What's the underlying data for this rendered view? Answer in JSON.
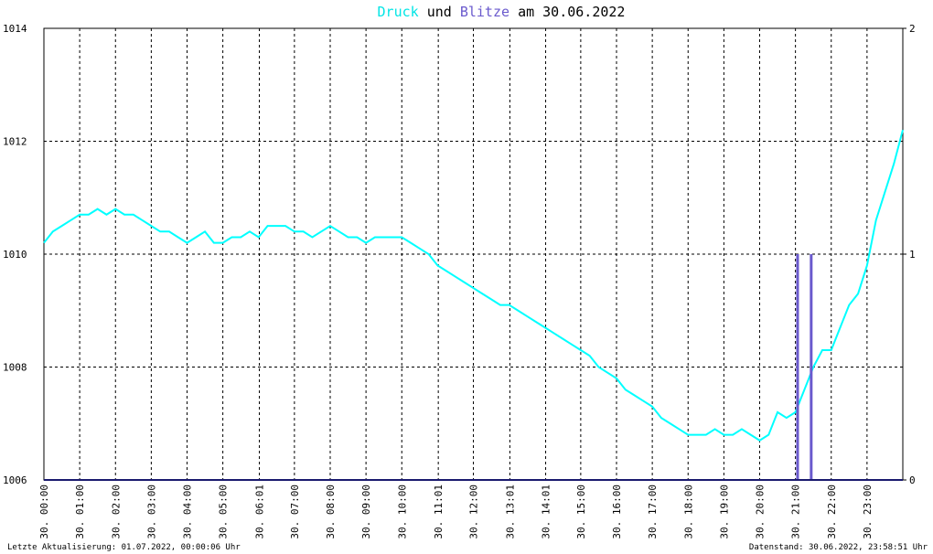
{
  "chart_data": {
    "type": "line",
    "title_parts": [
      "und",
      "am 30.06.2022"
    ],
    "footer_left": "Letzte Aktualisierung: 01.07.2022, 00:00:06 Uhr",
    "footer_right": "Datenstand: 30.06.2022, 23:58:51 Uhr",
    "xlim": [
      0,
      24
    ],
    "xticks": [
      {
        "value": 0,
        "label": "30. 00:00"
      },
      {
        "value": 1,
        "label": "30. 01:00"
      },
      {
        "value": 2,
        "label": "30. 02:00"
      },
      {
        "value": 3,
        "label": "30. 03:00"
      },
      {
        "value": 4,
        "label": "30. 04:00"
      },
      {
        "value": 5,
        "label": "30. 05:00"
      },
      {
        "value": 6.02,
        "label": "30. 06:01"
      },
      {
        "value": 7,
        "label": "30. 07:00"
      },
      {
        "value": 8,
        "label": "30. 08:00"
      },
      {
        "value": 9,
        "label": "30. 09:00"
      },
      {
        "value": 10,
        "label": "30. 10:00"
      },
      {
        "value": 11.02,
        "label": "30. 11:01"
      },
      {
        "value": 12,
        "label": "30. 12:00"
      },
      {
        "value": 13.02,
        "label": "30. 13:01"
      },
      {
        "value": 14.02,
        "label": "30. 14:01"
      },
      {
        "value": 15,
        "label": "30. 15:00"
      },
      {
        "value": 16,
        "label": "30. 16:00"
      },
      {
        "value": 17,
        "label": "30. 17:00"
      },
      {
        "value": 18,
        "label": "30. 18:00"
      },
      {
        "value": 19,
        "label": "30. 19:00"
      },
      {
        "value": 20,
        "label": "30. 20:00"
      },
      {
        "value": 21,
        "label": "30. 21:00"
      },
      {
        "value": 22,
        "label": "30. 22:00"
      },
      {
        "value": 23,
        "label": "30. 23:00"
      }
    ],
    "ylim": [
      1006,
      1014
    ],
    "yticks": [
      1006,
      1008,
      1010,
      1012,
      1014
    ],
    "y2lim": [
      0,
      2
    ],
    "y2ticks": [
      0,
      1,
      2
    ],
    "grid": true,
    "series": [
      {
        "name": "Druck",
        "color": "#00ffff",
        "x": [
          0,
          0.25,
          0.5,
          0.75,
          1,
          1.25,
          1.5,
          1.75,
          2,
          2.25,
          2.5,
          2.75,
          3,
          3.25,
          3.5,
          3.75,
          4,
          4.25,
          4.5,
          4.75,
          5,
          5.25,
          5.5,
          5.75,
          6,
          6.25,
          6.5,
          6.75,
          7,
          7.25,
          7.5,
          7.75,
          8,
          8.25,
          8.5,
          8.75,
          9,
          9.25,
          9.5,
          9.75,
          10,
          10.25,
          10.5,
          10.75,
          11,
          11.25,
          11.5,
          11.75,
          12,
          12.25,
          12.5,
          12.75,
          13,
          13.25,
          13.5,
          13.75,
          14,
          14.25,
          14.5,
          14.75,
          15,
          15.25,
          15.5,
          15.75,
          16,
          16.25,
          16.5,
          16.75,
          17,
          17.25,
          17.5,
          17.75,
          18,
          18.25,
          18.5,
          18.75,
          19,
          19.25,
          19.5,
          19.75,
          20,
          20.25,
          20.5,
          20.75,
          21,
          21.25,
          21.5,
          21.75,
          22,
          22.25,
          22.5,
          22.75,
          23,
          23.25,
          23.5,
          23.75,
          24
        ],
        "values": [
          1010.2,
          1010.4,
          1010.5,
          1010.6,
          1010.7,
          1010.7,
          1010.8,
          1010.7,
          1010.8,
          1010.7,
          1010.7,
          1010.6,
          1010.5,
          1010.4,
          1010.4,
          1010.3,
          1010.2,
          1010.3,
          1010.4,
          1010.2,
          1010.2,
          1010.3,
          1010.3,
          1010.4,
          1010.3,
          1010.5,
          1010.5,
          1010.5,
          1010.4,
          1010.4,
          1010.3,
          1010.4,
          1010.5,
          1010.4,
          1010.3,
          1010.3,
          1010.2,
          1010.3,
          1010.3,
          1010.3,
          1010.3,
          1010.2,
          1010.1,
          1010.0,
          1009.8,
          1009.7,
          1009.6,
          1009.5,
          1009.4,
          1009.3,
          1009.2,
          1009.1,
          1009.1,
          1009.0,
          1008.9,
          1008.8,
          1008.7,
          1008.6,
          1008.5,
          1008.4,
          1008.3,
          1008.2,
          1008.0,
          1007.9,
          1007.8,
          1007.6,
          1007.5,
          1007.4,
          1007.3,
          1007.1,
          1007.0,
          1006.9,
          1006.8,
          1006.8,
          1006.8,
          1006.9,
          1006.8,
          1006.8,
          1006.9,
          1006.8,
          1006.7,
          1006.8,
          1007.2,
          1007.1,
          1007.2,
          1007.6,
          1008.0,
          1008.3,
          1008.3,
          1008.7,
          1009.1,
          1009.3,
          1009.8,
          1010.6,
          1011.1,
          1011.6,
          1012.2
        ]
      },
      {
        "name": "Blitze",
        "color": "#6a5acd",
        "axis": "y2",
        "x": [
          21.06,
          21.44
        ],
        "values": [
          1,
          1
        ]
      }
    ]
  }
}
